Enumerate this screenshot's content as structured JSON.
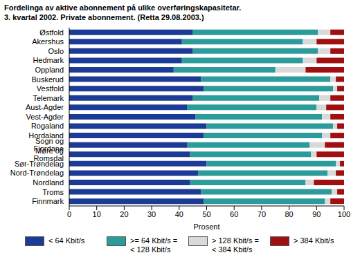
{
  "chart_data": {
    "type": "bar",
    "title": "Fordelinga av aktive abonnement på ulike overføringskapasitetar.",
    "subtitle": "3. kvartal 2002. Private abonnement. (Retta 29.08.2003.)",
    "orientation": "horizontal",
    "stacked": true,
    "grid": false,
    "legend": "bottom",
    "xlabel": "Prosent",
    "xlim": [
      0,
      100
    ],
    "xticks": [
      0,
      10,
      20,
      30,
      40,
      50,
      60,
      70,
      80,
      90,
      100
    ],
    "categories": [
      "Østfold",
      "Akershus",
      "Oslo",
      "Hedmark",
      "Oppland",
      "Buskerud",
      "Vestfold",
      "Telemark",
      "Aust-Agder",
      "Vest-Agder",
      "Rogaland",
      "Hordaland",
      "Sogn og Fjordane",
      "Møre og Romsdal",
      "Sør-Trøndelag",
      "Nord-Trøndelag",
      "Nordland",
      "Troms",
      "Finnmark"
    ],
    "series": [
      {
        "name": "< 64 Kbit/s",
        "color": "#1c3b96",
        "values": [
          45,
          41,
          45,
          41,
          38,
          48,
          49,
          45,
          43,
          46,
          50,
          49,
          43,
          44,
          50,
          47,
          44,
          48,
          49
        ]
      },
      {
        "name": ">= 64 Kbit/s = < 128 Kbit/s",
        "color": "#2c9c9b",
        "values": [
          45.5,
          44,
          45.5,
          44,
          37,
          47,
          47,
          46,
          47,
          46,
          46,
          43,
          44.5,
          44,
          47,
          47,
          42,
          47.5,
          44
        ]
      },
      {
        "name": "> 128 Kbit/s = < 384 Kbit/s",
        "color": "#d9d9d9",
        "values": [
          4.5,
          5,
          4.5,
          5,
          11,
          2,
          1.5,
          4,
          3.5,
          3,
          1.5,
          3,
          5.5,
          2,
          1.5,
          3,
          3,
          2,
          2
        ]
      },
      {
        "name": "> 384 Kbit/s",
        "color": "#a01010",
        "values": [
          5,
          10,
          5,
          10,
          14,
          3,
          2.5,
          5,
          6.5,
          5,
          2.5,
          5,
          7,
          10,
          1.5,
          3,
          11,
          2.5,
          5
        ]
      }
    ]
  }
}
